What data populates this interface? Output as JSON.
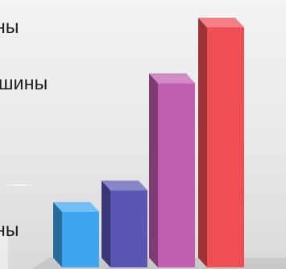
{
  "chart_data": {
    "type": "bar",
    "style": "3d",
    "categories": [
      "",
      "",
      "",
      ""
    ],
    "values": [
      13,
      18,
      43,
      56
    ],
    "colors": [
      "#3ea6ee",
      "#5a55b2",
      "#c25eaf",
      "#ef4e55"
    ],
    "labels": [
      "ны",
      "шины",
      "ны"
    ],
    "legend": "none",
    "grid": false
  }
}
